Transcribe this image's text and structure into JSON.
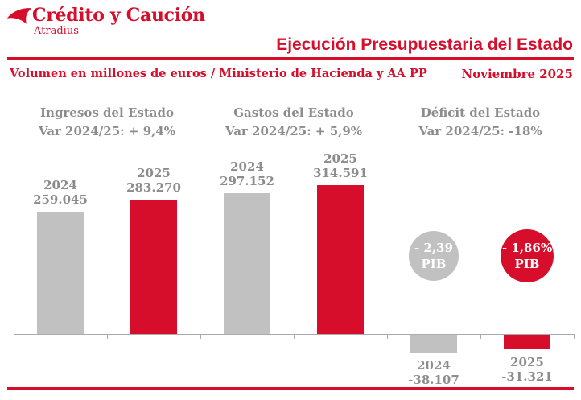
{
  "brand": {
    "logo_text": "Crédito y Caución",
    "logo_sub": "Atradius"
  },
  "header": {
    "title": "Ejecución Presupuestaria del Estado",
    "subtitle_left": "Volumen en millones de euros  / Ministerio de Hacienda y AA PP",
    "date": "Noviembre 2025"
  },
  "colors": {
    "red": "#D60E2B",
    "gray_bar": "#C1C1C1",
    "gray_text": "#8C8C8C",
    "axis": "#ABABAB"
  },
  "chart_data": {
    "type": "bar",
    "title": "Ejecución Presupuestaria del Estado",
    "unit": "millones de euros",
    "period": "Noviembre 2025",
    "gridlines": false,
    "baseline": 0,
    "sections": [
      {
        "title": "Ingresos del Estado",
        "subtitle": "Var 2024/25: + 9,4%",
        "variation_pct": 9.4,
        "bars": [
          {
            "year": "2024",
            "label": "259.045",
            "value": 259045,
            "color": "gray"
          },
          {
            "year": "2025",
            "label": "283.270",
            "value": 283270,
            "color": "red"
          }
        ]
      },
      {
        "title": "Gastos del Estado",
        "subtitle": "Var 2024/25: + 5,9%",
        "variation_pct": 5.9,
        "bars": [
          {
            "year": "2024",
            "label": "297.152",
            "value": 297152,
            "color": "gray"
          },
          {
            "year": "2025",
            "label": "314.591",
            "value": 314591,
            "color": "red"
          }
        ]
      },
      {
        "title": "Déficit del Estado",
        "subtitle": "Var 2024/25: -18%",
        "variation_pct": -18,
        "bars": [
          {
            "year": "2024",
            "label": "-38.107",
            "value": -38107,
            "color": "gray",
            "badge": {
              "line1": "- 2,39",
              "line2": "PIB"
            }
          },
          {
            "year": "2025",
            "label": "-31.321",
            "value": -31321,
            "color": "red",
            "badge": {
              "line1": "- 1,86%",
              "line2": "PIB"
            }
          }
        ]
      }
    ]
  }
}
